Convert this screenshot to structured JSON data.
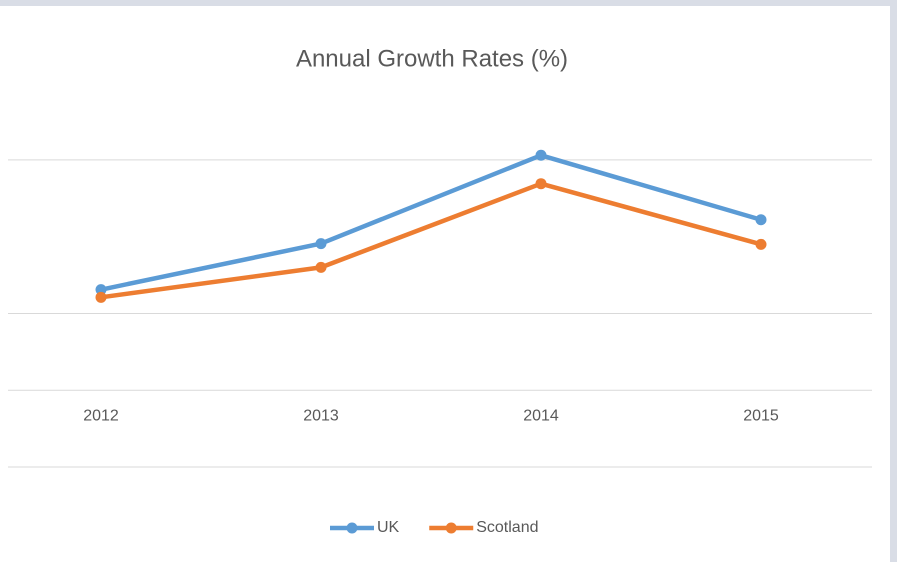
{
  "chart_data": {
    "type": "line",
    "title": "Annual Growth Rates (%)",
    "categories": [
      "2012",
      "2013",
      "2014",
      "2015"
    ],
    "series": [
      {
        "name": "UK",
        "color": "#5b9bd5",
        "values": [
          1.31,
          1.91,
          3.06,
          2.22
        ]
      },
      {
        "name": "Scotland",
        "color": "#ed7d31",
        "values": [
          1.21,
          1.6,
          2.69,
          1.9
        ]
      }
    ],
    "ylim": [
      -1,
      3.5
    ],
    "yticks": [
      -1,
      0,
      1,
      3
    ],
    "grid": true,
    "legend": "bottom"
  }
}
